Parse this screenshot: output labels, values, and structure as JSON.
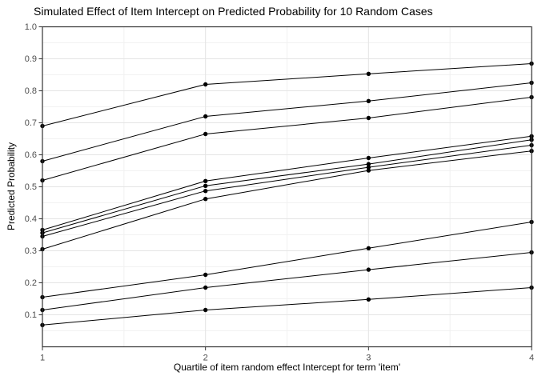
{
  "chart_data": {
    "type": "line",
    "title": "Simulated Effect of Item Intercept on Predicted Probability for 10 Random Cases",
    "xlabel": "Quartile of item random effect Intercept for term 'item'",
    "ylabel": "Predicted Probability",
    "x": [
      1,
      2,
      3,
      4
    ],
    "x_tick_labels": [
      "1",
      "2",
      "3",
      "4"
    ],
    "y_tick_values": [
      1.0,
      0.9,
      0.8,
      0.7,
      0.6,
      0.5,
      0.4,
      0.3,
      0.2,
      0.1
    ],
    "y_tick_labels": [
      "1.0",
      "0.9",
      "0.8",
      "0.7",
      "0.6",
      "0.5",
      "0.4",
      "0.3",
      "0.2",
      "0.1"
    ],
    "x_minor_gridlines": [
      1.5,
      2.5,
      3.5
    ],
    "y_minor_gridlines": [
      0.95,
      0.85,
      0.75,
      0.65,
      0.55,
      0.45,
      0.35,
      0.25,
      0.15,
      0.05
    ],
    "xlim": [
      1,
      4
    ],
    "ylim": [
      0,
      1
    ],
    "grid": "major-and-minor",
    "legend": "none",
    "marker": "filled-circle",
    "series": [
      {
        "values": [
          0.69,
          0.82,
          0.853,
          0.885
        ]
      },
      {
        "values": [
          0.58,
          0.72,
          0.768,
          0.825
        ]
      },
      {
        "values": [
          0.52,
          0.665,
          0.715,
          0.78
        ]
      },
      {
        "values": [
          0.365,
          0.518,
          0.59,
          0.658
        ]
      },
      {
        "values": [
          0.356,
          0.503,
          0.571,
          0.647
        ]
      },
      {
        "values": [
          0.345,
          0.487,
          0.561,
          0.63
        ]
      },
      {
        "values": [
          0.305,
          0.462,
          0.551,
          0.612
        ]
      },
      {
        "values": [
          0.155,
          0.225,
          0.308,
          0.39
        ]
      },
      {
        "values": [
          0.115,
          0.185,
          0.241,
          0.295
        ]
      },
      {
        "values": [
          0.068,
          0.115,
          0.148,
          0.185
        ]
      }
    ],
    "style": {
      "line_color": "#000000",
      "point_color": "#000000",
      "grid_major_color": "#e4e4e4",
      "grid_minor_color": "#f1f1f1",
      "axis_text_color": "#4d4d4d",
      "tick_color": "#333333",
      "panel_border_color": "#333333",
      "background_color": "#ffffff"
    }
  }
}
